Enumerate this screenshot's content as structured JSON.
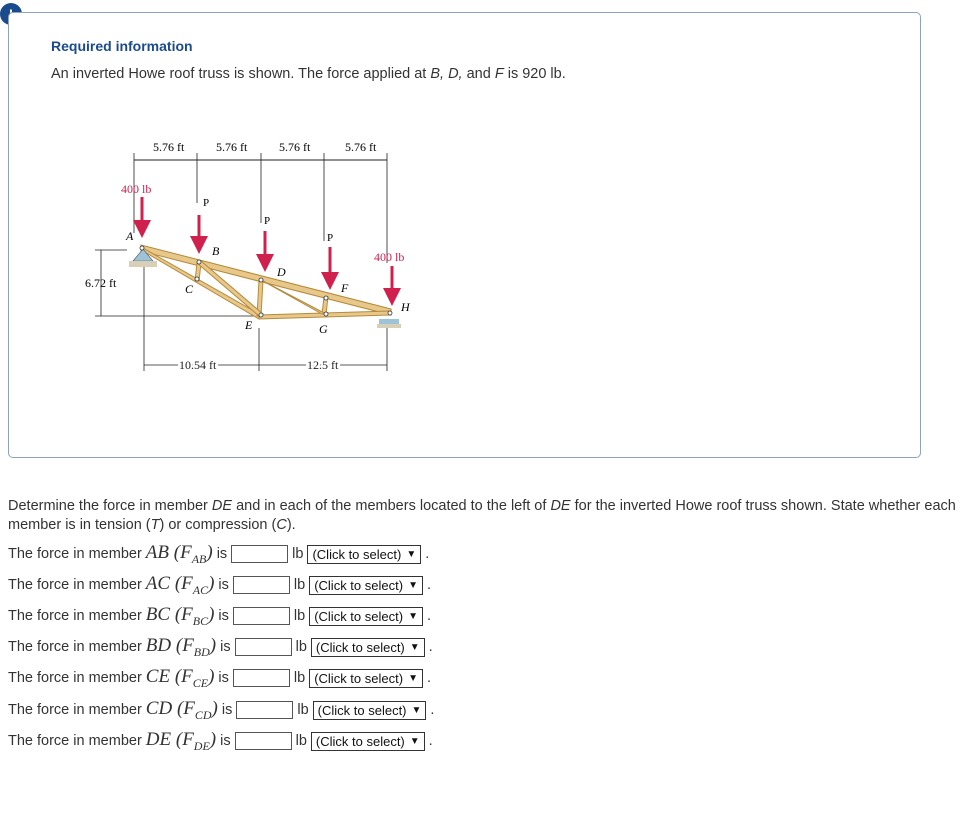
{
  "alert": {
    "symbol": "!"
  },
  "info": {
    "title": "Required information",
    "text_part1": "An inverted Howe roof truss is shown. The force applied at ",
    "pts": "B, D,",
    "text_and": " and ",
    "ptF": "F",
    "text_part2": " is 920 lb."
  },
  "figure": {
    "top_dims": [
      "5.76 ft",
      "5.76 ft",
      "5.76 ft",
      "5.76 ft"
    ],
    "height_dim": "6.72 ft",
    "bottom_dims": [
      "10.54 ft",
      "12.5 ft"
    ],
    "load_left": "400 lb",
    "load_right": "400 lb",
    "load_P": "P",
    "joints": {
      "A": "A",
      "B": "B",
      "C": "C",
      "D": "D",
      "E": "E",
      "F": "F",
      "G": "G",
      "H": "H"
    }
  },
  "question": {
    "text_part1": "Determine the force in member ",
    "member": "DE",
    "text_part2": " and in each of the members located to the left of ",
    "member2": "DE",
    "text_part3": " for the inverted Howe roof truss shown. State whether each member is in tension (",
    "T": "T",
    "text_part4": ") or compression (",
    "C": "C",
    "text_part5": ")."
  },
  "rows": [
    {
      "prefix": "The force in member",
      "member": "AB",
      "sym": "F",
      "sub": "AB",
      "is": "is",
      "unit": "lb",
      "select": "(Click to select)"
    },
    {
      "prefix": "The force in member",
      "member": "AC",
      "sym": "F",
      "sub": "AC",
      "is": "is",
      "unit": "lb",
      "select": "(Click to select)"
    },
    {
      "prefix": "The force in member",
      "member": "BC",
      "sym": "F",
      "sub": "BC",
      "is": "is",
      "unit": "lb",
      "select": "(Click to select)"
    },
    {
      "prefix": "The force in member",
      "member": "BD",
      "sym": "F",
      "sub": "BD",
      "is": "is",
      "unit": "lb",
      "select": "(Click to select)"
    },
    {
      "prefix": "The force in member",
      "member": "CE",
      "sym": "F",
      "sub": "CE",
      "is": "is",
      "unit": "lb",
      "select": "(Click to select)"
    },
    {
      "prefix": "The force in member",
      "member": "CD",
      "sym": "F",
      "sub": "CD",
      "is": "is",
      "unit": "lb",
      "select": "(Click to select)"
    },
    {
      "prefix": "The force in member",
      "member": "DE",
      "sym": "F",
      "sub": "DE",
      "is": "is",
      "unit": "lb",
      "select": "(Click to select)"
    }
  ],
  "colors": {
    "accent": "#1a4b8c",
    "load": "#d0204d",
    "wood": "#e8c88a",
    "wood_edge": "#b58a3c",
    "card_border": "#8fa3bf"
  }
}
